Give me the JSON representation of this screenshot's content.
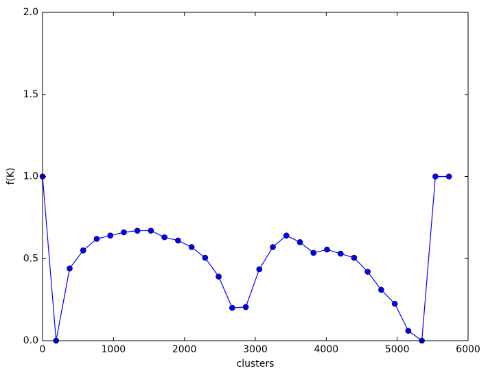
{
  "chart_data": {
    "type": "line",
    "xlabel": "clusters",
    "ylabel": "f(K)",
    "x": [
      0,
      191,
      382,
      573,
      764,
      955,
      1146,
      1337,
      1528,
      1719,
      1910,
      2101,
      2292,
      2483,
      2674,
      2865,
      3056,
      3247,
      3438,
      3629,
      3820,
      4011,
      4202,
      4393,
      4584,
      4775,
      4966,
      5157,
      5348,
      5539,
      5730
    ],
    "series": [
      {
        "name": "f(K)",
        "color": "#0000ff",
        "values": [
          1.0,
          0.0,
          0.44,
          0.55,
          0.62,
          0.64,
          0.66,
          0.67,
          0.67,
          0.63,
          0.61,
          0.57,
          0.505,
          0.39,
          0.2,
          0.205,
          0.435,
          0.57,
          0.64,
          0.6,
          0.535,
          0.555,
          0.53,
          0.505,
          0.42,
          0.31,
          0.225,
          0.06,
          0.0,
          1.0,
          1.0
        ]
      }
    ],
    "xlim": [
      0,
      6000
    ],
    "xticks": [
      0,
      1000,
      2000,
      3000,
      4000,
      5000,
      6000
    ],
    "ylim": [
      0,
      2.0
    ],
    "yticks": [
      {
        "value": 0,
        "label": "0.0"
      },
      {
        "value": 0.5,
        "label": "0.5"
      },
      {
        "value": 1.0,
        "label": "1.0"
      },
      {
        "value": 1.5,
        "label": "1.5"
      },
      {
        "value": 2.0,
        "label": "2.0"
      }
    ],
    "grid": false
  }
}
